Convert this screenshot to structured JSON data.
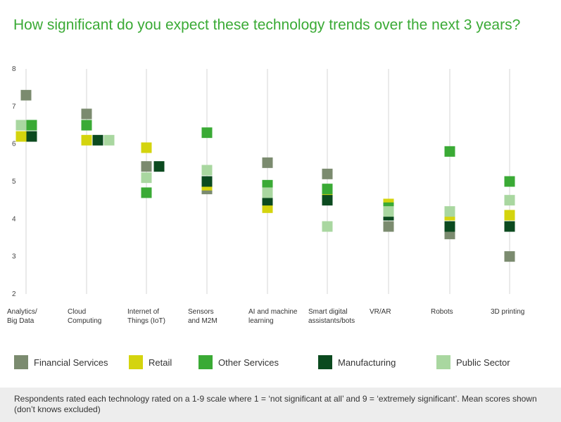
{
  "chart_data": {
    "type": "scatter",
    "title": "How significant do you expect these technology trends over the next 3 years?",
    "ylim": [
      2,
      8
    ],
    "yticks": [
      2,
      3,
      4,
      5,
      6,
      7,
      8
    ],
    "grid": "vertical lines at categories",
    "legend_position": "bottom",
    "categories": [
      [
        "Analytics/",
        "Big Data"
      ],
      [
        "Cloud",
        "Computing"
      ],
      [
        "Internet of",
        "Things (IoT)"
      ],
      [
        "Sensors",
        "and M2M"
      ],
      [
        "AI and machine",
        "learning"
      ],
      [
        "Smart digital",
        "assistants/bots"
      ],
      [
        "VR/AR"
      ],
      [
        "Robots"
      ],
      [
        "3D printing"
      ]
    ],
    "series": [
      {
        "name": "Financial Services",
        "color": "#7b8b6f",
        "values": [
          7.3,
          6.8,
          5.4,
          4.8,
          5.5,
          5.2,
          3.8,
          3.6,
          3.0
        ]
      },
      {
        "name": "Retail",
        "color": "#d4d40e",
        "values": [
          6.2,
          6.1,
          5.9,
          4.9,
          4.3,
          4.7,
          4.4,
          4.1,
          4.1
        ]
      },
      {
        "name": "Other Services",
        "color": "#3aaa35",
        "values": [
          6.5,
          6.5,
          4.7,
          6.3,
          4.9,
          4.8,
          4.3,
          5.8,
          5.0
        ]
      },
      {
        "name": "Manufacturing",
        "color": "#0b4a1f",
        "values": [
          6.2,
          6.1,
          5.4,
          5.0,
          4.5,
          4.5,
          4.1,
          3.8,
          3.8
        ]
      },
      {
        "name": "Public Sector",
        "color": "#a9d7a0",
        "values": [
          6.5,
          6.1,
          5.1,
          5.3,
          4.7,
          3.8,
          4.2,
          4.2,
          4.5
        ]
      }
    ]
  },
  "footnote": "Respondents rated each technology rated on a 1-9 scale where 1 = ‘not significant at all’ and 9 = ‘extremely significant’. Mean scores shown (don’t knows excluded)"
}
